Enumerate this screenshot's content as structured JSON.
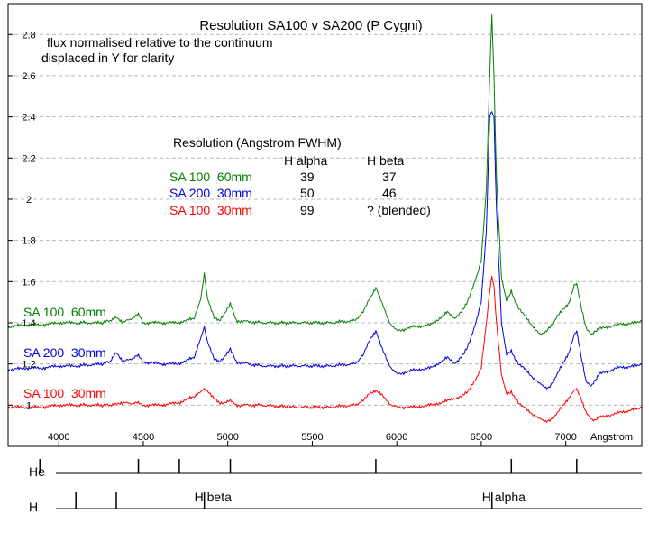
{
  "chart_data": {
    "type": "line",
    "title": "Resolution  SA100 v SA200 (P Cygni)",
    "notes": [
      "flux normalised relative to the continuum",
      "displaced in Y for clarity"
    ],
    "xlabel": "Angstrom",
    "xlim": [
      3700,
      7450
    ],
    "ylim": [
      0.8,
      2.95
    ],
    "x_ticks": [
      4000,
      4500,
      5000,
      5500,
      6000,
      6500,
      7000
    ],
    "y_ticks": [
      1,
      1.2,
      1.4,
      1.6,
      1.8,
      2,
      2.2,
      2.4,
      2.6,
      2.8
    ],
    "grid": "horizontal dashed",
    "series": [
      {
        "name": "SA 100  60mm",
        "color": "#008000",
        "x": [
          3700,
          3800,
          3900,
          4000,
          4100,
          4250,
          4300,
          4340,
          4380,
          4471,
          4500,
          4600,
          4700,
          4800,
          4840,
          4861,
          4880,
          4920,
          4950,
          5015,
          5050,
          5200,
          5400,
          5600,
          5750,
          5800,
          5840,
          5876,
          5910,
          5950,
          6000,
          6100,
          6200,
          6300,
          6340,
          6400,
          6450,
          6500,
          6530,
          6550,
          6563,
          6575,
          6590,
          6620,
          6650,
          6678,
          6700,
          6750,
          6850,
          6900,
          6950,
          7020,
          7050,
          7065,
          7090,
          7120,
          7150,
          7170,
          7200,
          7300,
          7400,
          7450
        ],
        "y": [
          1.38,
          1.39,
          1.39,
          1.4,
          1.4,
          1.4,
          1.41,
          1.43,
          1.4,
          1.44,
          1.4,
          1.4,
          1.4,
          1.42,
          1.52,
          1.64,
          1.52,
          1.42,
          1.41,
          1.49,
          1.41,
          1.4,
          1.4,
          1.4,
          1.41,
          1.45,
          1.52,
          1.57,
          1.5,
          1.41,
          1.36,
          1.38,
          1.39,
          1.45,
          1.42,
          1.47,
          1.57,
          1.7,
          2.05,
          2.6,
          2.9,
          2.6,
          2.1,
          1.62,
          1.5,
          1.55,
          1.5,
          1.44,
          1.34,
          1.37,
          1.43,
          1.5,
          1.58,
          1.59,
          1.48,
          1.38,
          1.34,
          1.36,
          1.37,
          1.39,
          1.4,
          1.41
        ]
      },
      {
        "name": "SA 200  30mm",
        "color": "#0000dd",
        "x": [
          3700,
          3800,
          3900,
          4000,
          4100,
          4250,
          4300,
          4340,
          4380,
          4471,
          4500,
          4600,
          4700,
          4800,
          4840,
          4861,
          4880,
          4920,
          4950,
          5015,
          5050,
          5200,
          5400,
          5600,
          5750,
          5800,
          5840,
          5876,
          5910,
          5950,
          6000,
          6100,
          6200,
          6300,
          6340,
          6400,
          6450,
          6500,
          6530,
          6550,
          6563,
          6575,
          6590,
          6620,
          6650,
          6678,
          6700,
          6750,
          6850,
          6900,
          6950,
          7020,
          7050,
          7065,
          7090,
          7120,
          7150,
          7170,
          7200,
          7300,
          7400,
          7450
        ],
        "y": [
          1.17,
          1.18,
          1.18,
          1.19,
          1.19,
          1.2,
          1.21,
          1.26,
          1.21,
          1.24,
          1.21,
          1.2,
          1.2,
          1.23,
          1.33,
          1.38,
          1.31,
          1.22,
          1.21,
          1.27,
          1.21,
          1.19,
          1.19,
          1.19,
          1.2,
          1.24,
          1.32,
          1.36,
          1.28,
          1.2,
          1.15,
          1.17,
          1.18,
          1.23,
          1.2,
          1.25,
          1.35,
          1.5,
          1.85,
          2.4,
          2.43,
          2.4,
          1.95,
          1.4,
          1.24,
          1.26,
          1.22,
          1.18,
          1.1,
          1.08,
          1.15,
          1.26,
          1.34,
          1.36,
          1.24,
          1.12,
          1.09,
          1.12,
          1.15,
          1.18,
          1.19,
          1.2
        ]
      },
      {
        "name": "SA 100  30mm",
        "color": "#ff0000",
        "x": [
          3700,
          3800,
          3900,
          4000,
          4100,
          4250,
          4300,
          4340,
          4380,
          4471,
          4500,
          4600,
          4700,
          4800,
          4840,
          4861,
          4880,
          4920,
          4950,
          5015,
          5050,
          5200,
          5400,
          5600,
          5750,
          5800,
          5840,
          5876,
          5910,
          5950,
          6000,
          6100,
          6200,
          6300,
          6340,
          6400,
          6450,
          6500,
          6530,
          6550,
          6563,
          6575,
          6590,
          6620,
          6650,
          6678,
          6700,
          6750,
          6850,
          6900,
          6950,
          7020,
          7050,
          7065,
          7090,
          7120,
          7150,
          7170,
          7200,
          7300,
          7400,
          7450
        ],
        "y": [
          0.99,
          0.99,
          0.99,
          1.0,
          1.0,
          1.0,
          1.0,
          1.01,
          1.01,
          1.01,
          1.0,
          1.0,
          1.01,
          1.04,
          1.07,
          1.08,
          1.07,
          1.03,
          1.01,
          1.02,
          1.0,
          1.0,
          0.99,
          0.99,
          1.0,
          1.02,
          1.06,
          1.07,
          1.05,
          1.01,
          0.99,
          0.99,
          1.0,
          1.02,
          1.03,
          1.05,
          1.1,
          1.18,
          1.4,
          1.55,
          1.63,
          1.58,
          1.4,
          1.15,
          1.05,
          1.06,
          1.03,
          0.99,
          0.93,
          0.92,
          0.96,
          1.04,
          1.07,
          1.08,
          1.03,
          0.97,
          0.93,
          0.93,
          0.94,
          0.96,
          0.98,
          0.99
        ]
      }
    ],
    "resolution_table": {
      "heading": "Resolution (Angstrom FWHM)",
      "columns": [
        "H alpha",
        "H beta"
      ],
      "rows": [
        {
          "label": "SA 100  60mm",
          "alpha": "39",
          "beta": "37",
          "color": "#008000"
        },
        {
          "label": "SA 200  30mm",
          "alpha": "50",
          "beta": "46",
          "color": "#0000dd"
        },
        {
          "label": "SA 100  30mm",
          "alpha": "99",
          "beta": "? (blended)",
          "color": "#ff0000"
        }
      ]
    },
    "line_markers": {
      "he": {
        "label": "He",
        "lines": [
          3888,
          4471,
          4713,
          5015,
          5876,
          6678,
          7065
        ]
      },
      "h": {
        "label": "H",
        "lines": [
          4101,
          4340,
          4861,
          6563
        ],
        "named": [
          {
            "text": "H beta",
            "x": 4861
          },
          {
            "text": "H alpha",
            "x": 6563
          }
        ]
      }
    }
  }
}
